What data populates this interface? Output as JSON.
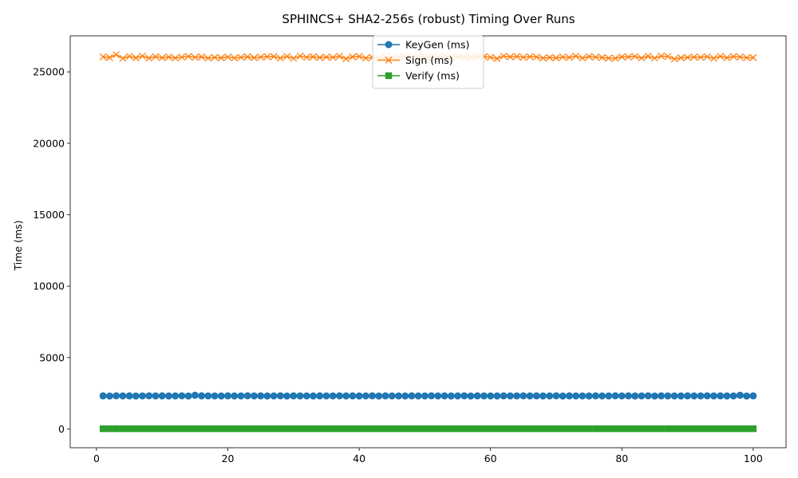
{
  "chart_data": {
    "type": "line",
    "title": "SPHINCS+ SHA2-256s (robust) Timing Over Runs",
    "xlabel": "",
    "ylabel": "Time (ms)",
    "xlim": [
      -4,
      105
    ],
    "ylim": [
      -1310,
      27520
    ],
    "x_ticks": [
      0,
      20,
      40,
      60,
      80,
      100
    ],
    "y_ticks": [
      0,
      5000,
      10000,
      15000,
      20000,
      25000
    ],
    "grid": false,
    "legend_position": "upper center",
    "x": [
      1,
      2,
      3,
      4,
      5,
      6,
      7,
      8,
      9,
      10,
      11,
      12,
      13,
      14,
      15,
      16,
      17,
      18,
      19,
      20,
      21,
      22,
      23,
      24,
      25,
      26,
      27,
      28,
      29,
      30,
      31,
      32,
      33,
      34,
      35,
      36,
      37,
      38,
      39,
      40,
      41,
      42,
      43,
      44,
      45,
      46,
      47,
      48,
      49,
      50,
      51,
      52,
      53,
      54,
      55,
      56,
      57,
      58,
      59,
      60,
      61,
      62,
      63,
      64,
      65,
      66,
      67,
      68,
      69,
      70,
      71,
      72,
      73,
      74,
      75,
      76,
      77,
      78,
      79,
      80,
      81,
      82,
      83,
      84,
      85,
      86,
      87,
      88,
      89,
      90,
      91,
      92,
      93,
      94,
      95,
      96,
      97,
      98,
      99,
      100
    ],
    "series": [
      {
        "name": "KeyGen (ms)",
        "color": "#1f77b4",
        "marker": "circle",
        "values": [
          2320,
          2310,
          2325,
          2315,
          2320,
          2310,
          2318,
          2322,
          2315,
          2320,
          2312,
          2318,
          2325,
          2310,
          2360,
          2320,
          2315,
          2318,
          2312,
          2320,
          2315,
          2318,
          2322,
          2315,
          2320,
          2312,
          2318,
          2325,
          2310,
          2320,
          2315,
          2318,
          2312,
          2320,
          2315,
          2318,
          2322,
          2315,
          2320,
          2312,
          2318,
          2325,
          2310,
          2320,
          2315,
          2318,
          2312,
          2320,
          2315,
          2318,
          2322,
          2315,
          2320,
          2312,
          2318,
          2325,
          2310,
          2320,
          2315,
          2318,
          2312,
          2320,
          2315,
          2318,
          2322,
          2315,
          2320,
          2312,
          2318,
          2325,
          2310,
          2320,
          2315,
          2318,
          2312,
          2320,
          2315,
          2318,
          2322,
          2315,
          2320,
          2312,
          2318,
          2325,
          2310,
          2320,
          2315,
          2318,
          2312,
          2320,
          2315,
          2318,
          2322,
          2315,
          2320,
          2312,
          2318,
          2360,
          2310,
          2320
        ]
      },
      {
        "name": "Sign (ms)",
        "color": "#ff7f0e",
        "marker": "x",
        "values": [
          26050,
          26000,
          26200,
          25950,
          26080,
          25980,
          26100,
          25960,
          26060,
          25990,
          26040,
          25970,
          26030,
          26080,
          26020,
          26050,
          25960,
          26010,
          25980,
          26040,
          25970,
          26020,
          26050,
          25990,
          26030,
          26060,
          26070,
          25960,
          26080,
          25950,
          26100,
          26020,
          26050,
          26000,
          26030,
          26010,
          26090,
          25920,
          26050,
          26080,
          25960,
          26010,
          25970,
          26030,
          26040,
          26020,
          26060,
          26010,
          26080,
          26050,
          26000,
          26040,
          26080,
          26030,
          26060,
          25990,
          26020,
          26050,
          26070,
          26020,
          25930,
          26100,
          26050,
          26080,
          26020,
          26060,
          26040,
          25960,
          26000,
          25980,
          26030,
          26010,
          26100,
          25970,
          26070,
          26030,
          26000,
          25960,
          25950,
          26050,
          26040,
          26080,
          25970,
          26090,
          25960,
          26100,
          26080,
          25900,
          25980,
          26010,
          26030,
          26020,
          26060,
          25950,
          26080,
          25990,
          26070,
          26040,
          25990,
          26000
        ]
      },
      {
        "name": "Verify (ms)",
        "color": "#2ca02c",
        "marker": "square",
        "values": [
          20,
          20,
          20,
          20,
          20,
          20,
          20,
          20,
          20,
          20,
          20,
          20,
          20,
          20,
          20,
          20,
          20,
          20,
          20,
          20,
          20,
          20,
          20,
          20,
          20,
          20,
          20,
          20,
          20,
          20,
          20,
          20,
          20,
          20,
          20,
          20,
          20,
          20,
          20,
          20,
          20,
          20,
          20,
          20,
          20,
          20,
          20,
          20,
          20,
          20,
          20,
          20,
          20,
          20,
          20,
          20,
          20,
          20,
          20,
          20,
          20,
          20,
          20,
          20,
          20,
          20,
          20,
          20,
          20,
          20,
          20,
          20,
          20,
          20,
          20,
          20,
          20,
          20,
          20,
          20,
          20,
          20,
          20,
          20,
          20,
          20,
          20,
          20,
          20,
          20,
          20,
          20,
          20,
          20,
          20,
          20,
          20,
          20,
          20,
          20
        ]
      }
    ]
  }
}
